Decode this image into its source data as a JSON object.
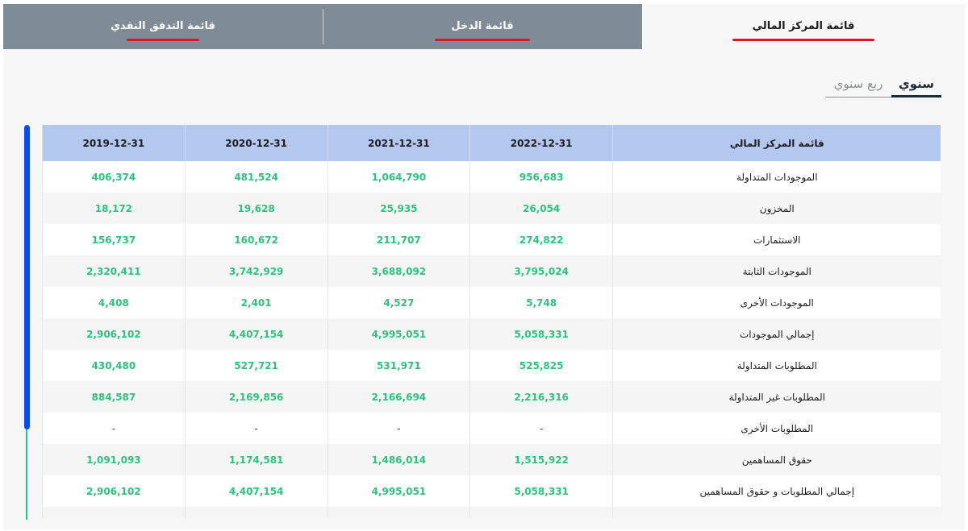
{
  "tabs": [
    {
      "label": "قائمة المركز المالي"
    },
    {
      "label": "قائمة الدخل"
    },
    {
      "label": "قائمة التدفق النقدي"
    }
  ],
  "period_toggle": {
    "annual": "سنوي",
    "quarterly": "ربع سنوي"
  },
  "table": {
    "header_label": "قائمة المركز المالي",
    "columns": [
      "2022-12-31",
      "2021-12-31",
      "2020-12-31",
      "2019-12-31"
    ],
    "rows": [
      {
        "label": "الموجودات المتداولة",
        "values": [
          "956,683",
          "1,064,790",
          "481,524",
          "406,374"
        ]
      },
      {
        "label": "المخزون",
        "values": [
          "26,054",
          "25,935",
          "19,628",
          "18,172"
        ]
      },
      {
        "label": "الاستثمارات",
        "values": [
          "274,822",
          "211,707",
          "160,672",
          "156,737"
        ]
      },
      {
        "label": "الموجودات الثابتة",
        "values": [
          "3,795,024",
          "3,688,092",
          "3,742,929",
          "2,320,411"
        ]
      },
      {
        "label": "الموجودات الأخرى",
        "values": [
          "5,748",
          "4,527",
          "2,401",
          "4,408"
        ]
      },
      {
        "label": "إجمالي الموجودات",
        "values": [
          "5,058,331",
          "4,995,051",
          "4,407,154",
          "2,906,102"
        ]
      },
      {
        "label": "المطلوبات المتداولة",
        "values": [
          "525,825",
          "531,971",
          "527,721",
          "430,480"
        ]
      },
      {
        "label": "المطلوبات غير المتداولة",
        "values": [
          "2,216,316",
          "2,166,694",
          "2,169,856",
          "884,587"
        ]
      },
      {
        "label": "المطلوبات الأخرى",
        "values": [
          "-",
          "-",
          "-",
          "-"
        ]
      },
      {
        "label": "حقوق المساهمين",
        "values": [
          "1,515,922",
          "1,486,014",
          "1,174,581",
          "1,091,093"
        ]
      },
      {
        "label": "إجمالي المطلوبات و حقوق المساهمين",
        "values": [
          "5,058,331",
          "4,995,051",
          "4,407,154",
          "2,906,102"
        ]
      },
      {
        "label": "",
        "values": [
          "",
          "",
          "",
          ""
        ]
      }
    ]
  },
  "colors": {
    "tab_inactive_bg": "#7f8c97",
    "tab_underline": "#e0141e",
    "header_bg": "#b3c7ef",
    "value_green": "#2ec27e",
    "scroll_thumb": "#0b4de6"
  }
}
